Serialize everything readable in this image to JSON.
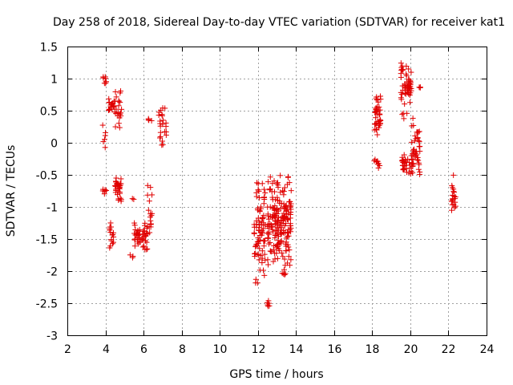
{
  "chart_data": {
    "type": "scatter",
    "title": "Day 258 of 2018, Sidereal Day-to-day VTEC variation (SDTVAR) for receiver kat1",
    "xlabel": "GPS time / hours",
    "ylabel": "SDTVAR / TECUs",
    "xlim": [
      2,
      24
    ],
    "ylim": [
      -3,
      1.5
    ],
    "xticks": [
      2,
      4,
      6,
      8,
      10,
      12,
      14,
      16,
      18,
      20,
      22,
      24
    ],
    "yticks": [
      -3,
      -2.5,
      -2,
      -1.5,
      -1,
      -0.5,
      0,
      0.5,
      1,
      1.5
    ],
    "xtick_labels": [
      "2",
      "4",
      "6",
      "8",
      "10",
      "12",
      "14",
      "16",
      "18",
      "20",
      "22",
      "24"
    ],
    "ytick_labels": [
      "-3",
      "-2.5",
      "-2",
      "-1.5",
      "-1",
      "-0.5",
      "0",
      "0.5",
      "1",
      "1.5"
    ],
    "marker": "+",
    "color": "#e00000",
    "grid": true,
    "series": [
      {
        "name": "kat1",
        "clusters": [
          {
            "x": [
              3.85,
              4.05
            ],
            "y": [
              0.9,
              1.05
            ],
            "n": 8
          },
          {
            "x": [
              3.85,
              4.0
            ],
            "y": [
              -0.1,
              0.3
            ],
            "n": 6
          },
          {
            "x": [
              3.85,
              4.05
            ],
            "y": [
              -0.8,
              -0.7
            ],
            "n": 6
          },
          {
            "x": [
              4.15,
              4.5
            ],
            "y": [
              0.45,
              0.7
            ],
            "n": 18
          },
          {
            "x": [
              4.5,
              4.85
            ],
            "y": [
              0.1,
              0.85
            ],
            "n": 22
          },
          {
            "x": [
              4.5,
              4.9
            ],
            "y": [
              -0.95,
              -0.45
            ],
            "n": 30
          },
          {
            "x": [
              4.2,
              4.45
            ],
            "y": [
              -1.7,
              -1.2
            ],
            "n": 16
          },
          {
            "x": [
              5.25,
              5.45
            ],
            "y": [
              -1.8,
              -1.7
            ],
            "n": 3
          },
          {
            "x": [
              5.3,
              5.55
            ],
            "y": [
              -0.9,
              -0.85
            ],
            "n": 2
          },
          {
            "x": [
              5.5,
              6.2
            ],
            "y": [
              -1.7,
              -1.2
            ],
            "n": 50
          },
          {
            "x": [
              6.2,
              6.45
            ],
            "y": [
              -1.7,
              -0.55
            ],
            "n": 18
          },
          {
            "x": [
              6.25,
              6.45
            ],
            "y": [
              0.3,
              0.4
            ],
            "n": 4
          },
          {
            "x": [
              6.8,
              7.2
            ],
            "y": [
              -0.1,
              0.7
            ],
            "n": 24
          },
          {
            "x": [
              11.8,
              12.4
            ],
            "y": [
              -2.3,
              -0.45
            ],
            "n": 80
          },
          {
            "x": [
              12.3,
              12.6
            ],
            "y": [
              -2.6,
              -2.45
            ],
            "n": 6
          },
          {
            "x": [
              12.5,
              13.1
            ],
            "y": [
              -2.0,
              -0.5
            ],
            "n": 90
          },
          {
            "x": [
              13.0,
              13.75
            ],
            "y": [
              -2.25,
              -0.4
            ],
            "n": 110
          },
          {
            "x": [
              18.1,
              18.45
            ],
            "y": [
              0.0,
              0.85
            ],
            "n": 40
          },
          {
            "x": [
              18.1,
              18.45
            ],
            "y": [
              -0.45,
              -0.2
            ],
            "n": 10
          },
          {
            "x": [
              19.5,
              20.05
            ],
            "y": [
              0.35,
              1.35
            ],
            "n": 60
          },
          {
            "x": [
              19.55,
              20.15
            ],
            "y": [
              -0.5,
              -0.15
            ],
            "n": 40
          },
          {
            "x": [
              20.05,
              20.5
            ],
            "y": [
              -0.6,
              0.45
            ],
            "n": 40
          },
          {
            "x": [
              20.4,
              20.55
            ],
            "y": [
              0.85,
              0.87
            ],
            "n": 3
          },
          {
            "x": [
              22.15,
              22.4
            ],
            "y": [
              -1.2,
              -0.5
            ],
            "n": 20
          }
        ]
      }
    ]
  }
}
